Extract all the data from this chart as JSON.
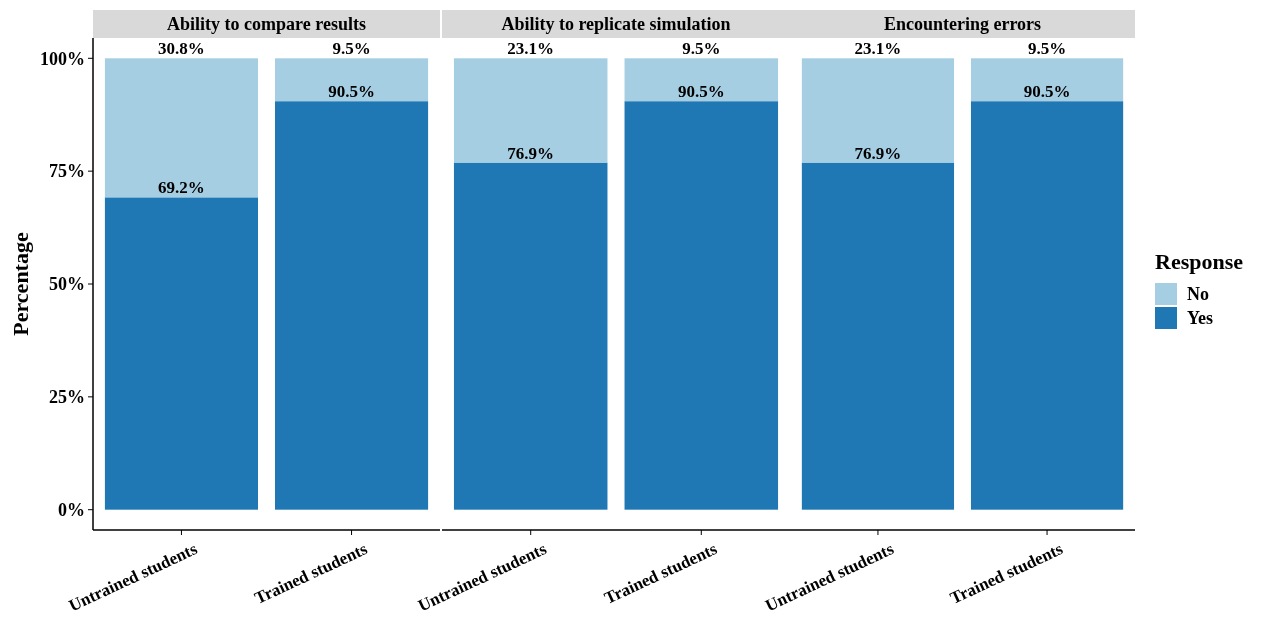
{
  "chart_data": [
    {
      "type": "bar",
      "stacked": true,
      "title": "Ability to compare results",
      "ylabel": "Percentage",
      "legend": "right",
      "legend_title": "Response",
      "categories": [
        "Untrained students",
        "Trained students"
      ],
      "ylim": [
        -4.5,
        104.5
      ],
      "yticks": [
        {
          "value": 0,
          "label": "0%"
        },
        {
          "value": 25,
          "label": "25%"
        },
        {
          "value": 50,
          "label": "50%"
        },
        {
          "value": 75,
          "label": "75%"
        },
        {
          "value": 100,
          "label": "100%"
        }
      ],
      "series": [
        {
          "name": "Yes",
          "color": "#1f78b4",
          "values": [
            69.2,
            90.5
          ],
          "value_labels": [
            "69.2%",
            "90.5%"
          ]
        },
        {
          "name": "No",
          "color": "#a6cee3",
          "values": [
            30.8,
            9.5
          ],
          "value_labels": [
            "30.8%",
            "9.5%"
          ]
        }
      ]
    },
    {
      "type": "bar",
      "stacked": true,
      "title": "Ability to replicate simulation",
      "categories": [
        "Untrained students",
        "Trained students"
      ],
      "tick_labels": "x",
      "legend": "right",
      "series": [
        {
          "name": "Yes",
          "color": "#1f78b4",
          "values": [
            76.9,
            90.5
          ],
          "value_labels": [
            "76.9%",
            "90.5%"
          ]
        },
        {
          "name": "No",
          "color": "#a6cee3",
          "values": [
            23.1,
            9.5
          ],
          "value_labels": [
            "23.1%",
            "9.5%"
          ]
        }
      ]
    },
    {
      "type": "bar",
      "stacked": true,
      "title": "Encountering errors",
      "categories": [
        "Untrained students",
        "Trained students"
      ],
      "tick_labels": "x",
      "legend": "right",
      "series": [
        {
          "name": "Yes",
          "color": "#1f78b4",
          "values": [
            76.9,
            90.5
          ],
          "value_labels": [
            "76.9%",
            "90.5%"
          ]
        },
        {
          "name": "No",
          "color": "#a6cee3",
          "values": [
            23.1,
            9.5
          ],
          "value_labels": [
            "23.1%",
            "9.5%"
          ]
        }
      ]
    }
  ]
}
